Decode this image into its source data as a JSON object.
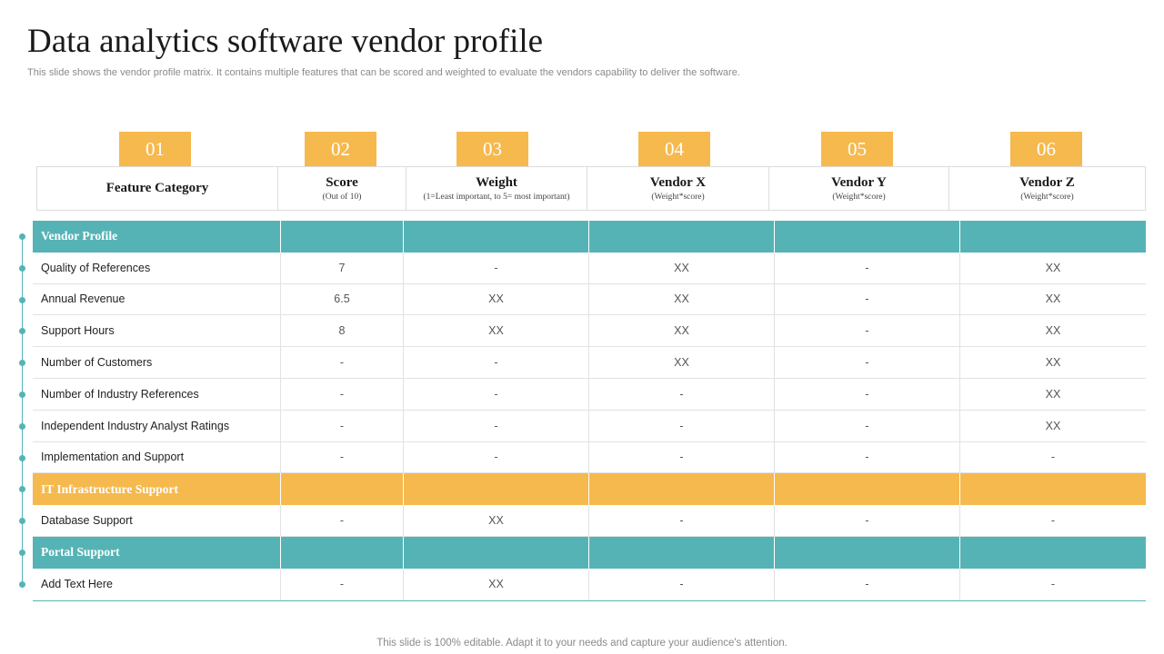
{
  "title": "Data analytics software vendor profile",
  "subtitle": "This slide shows the vendor profile matrix. It contains multiple features that can be scored and weighted to evaluate the vendors capability to deliver the software.",
  "tabs": [
    "01",
    "02",
    "03",
    "04",
    "05",
    "06"
  ],
  "columns": [
    {
      "main": "Feature Category",
      "sub": ""
    },
    {
      "main": "Score",
      "sub": "(Out of 10)"
    },
    {
      "main": "Weight",
      "sub": "(1=Least important, to 5= most important)"
    },
    {
      "main": "Vendor X",
      "sub": "(Weight*score)"
    },
    {
      "main": "Vendor Y",
      "sub": "(Weight*score)"
    },
    {
      "main": "Vendor Z",
      "sub": "(Weight*score)"
    }
  ],
  "rows": [
    {
      "type": "section",
      "color": "teal",
      "cells": [
        "Vendor Profile",
        "",
        "",
        "",
        "",
        ""
      ]
    },
    {
      "type": "data",
      "cells": [
        "Quality of References",
        "7",
        "-",
        "XX",
        "-",
        "XX"
      ]
    },
    {
      "type": "data",
      "cells": [
        "Annual Revenue",
        "6.5",
        "XX",
        "XX",
        "-",
        "XX"
      ]
    },
    {
      "type": "data",
      "cells": [
        "Support Hours",
        "8",
        "XX",
        "XX",
        "-",
        "XX"
      ]
    },
    {
      "type": "data",
      "cells": [
        "Number of Customers",
        "-",
        "-",
        "XX",
        "-",
        "XX"
      ]
    },
    {
      "type": "data",
      "cells": [
        "Number of Industry References",
        "-",
        "-",
        "-",
        "-",
        "XX"
      ]
    },
    {
      "type": "data",
      "cells": [
        "Independent Industry Analyst Ratings",
        "-",
        "-",
        "-",
        "-",
        "XX"
      ]
    },
    {
      "type": "data",
      "cells": [
        "Implementation and Support",
        "-",
        "-",
        "-",
        "-",
        "-"
      ]
    },
    {
      "type": "section",
      "color": "orange",
      "cells": [
        "IT Infrastructure Support",
        "",
        "",
        "",
        "",
        ""
      ]
    },
    {
      "type": "data",
      "cells": [
        "Database Support",
        "-",
        "XX",
        "-",
        "-",
        "-"
      ]
    },
    {
      "type": "section",
      "color": "teal",
      "cells": [
        "Portal Support",
        "",
        "",
        "",
        "",
        ""
      ]
    },
    {
      "type": "data",
      "cells": [
        "Add Text Here",
        "-",
        "XX",
        "-",
        "-",
        "-"
      ]
    }
  ],
  "colors": {
    "teal": "#56b3b5",
    "orange": "#f6b94e"
  },
  "footer": "This slide is 100% editable. Adapt it to your needs and capture your audience's attention."
}
